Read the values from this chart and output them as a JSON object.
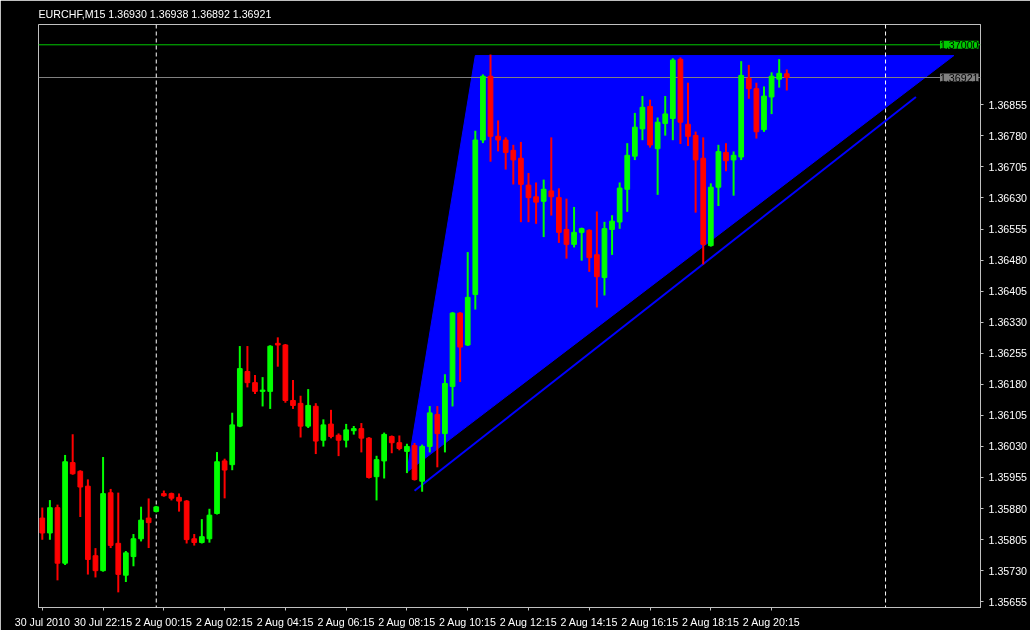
{
  "chart_data": {
    "type": "candlestick",
    "title": "EURCHF,M15  1.36930 1.36938 1.36892 1.36921",
    "categories": [
      "30 Jul 2010",
      null,
      null,
      null,
      null,
      null,
      null,
      null,
      "30 Jul 22:15",
      null,
      null,
      null,
      null,
      null,
      null,
      null,
      "2 Aug 00:15",
      null,
      null,
      null,
      null,
      null,
      null,
      null,
      "2 Aug 02:15",
      null,
      null,
      null,
      null,
      null,
      null,
      null,
      "2 Aug 04:15",
      null,
      null,
      null,
      null,
      null,
      null,
      null,
      "2 Aug 06:15",
      null,
      null,
      null,
      null,
      null,
      null,
      null,
      "2 Aug 08:15",
      null,
      null,
      null,
      null,
      null,
      null,
      null,
      "2 Aug 10:15",
      null,
      null,
      null,
      null,
      null,
      null,
      null,
      "2 Aug 12:15",
      null,
      null,
      null,
      null,
      null,
      null,
      null,
      "2 Aug 14:15",
      null,
      null,
      null,
      null,
      null,
      null,
      null,
      "2 Aug 16:15",
      null,
      null,
      null,
      null,
      null,
      null,
      null,
      "2 Aug 18:15",
      null,
      null,
      null,
      null,
      null,
      null,
      null,
      "2 Aug 20:15",
      null,
      null,
      null,
      null,
      null,
      null,
      null,
      null,
      null,
      null,
      null,
      null,
      null,
      null,
      null,
      null,
      null,
      null,
      null,
      null,
      null,
      null,
      null,
      null,
      null,
      null,
      null
    ],
    "ohlc": [
      [
        1.35857,
        1.3588,
        1.35807,
        1.35821
      ],
      [
        1.35821,
        1.35898,
        1.35807,
        1.35882
      ],
      [
        1.35882,
        1.35887,
        1.35709,
        1.35748
      ],
      [
        1.35748,
        1.36007,
        1.35746,
        1.35993
      ],
      [
        1.35991,
        1.36057,
        1.35964,
        1.35964
      ],
      [
        1.3597,
        1.3597,
        1.35862,
        1.35932
      ],
      [
        1.35934,
        1.35948,
        1.35723,
        1.35757
      ],
      [
        1.35766,
        1.35782,
        1.35716,
        1.3573
      ],
      [
        1.3573,
        1.36002,
        1.3573,
        1.35916
      ],
      [
        1.35918,
        1.35925,
        1.35787,
        1.35791
      ],
      [
        1.35796,
        1.35916,
        1.3568,
        1.35721
      ],
      [
        1.35719,
        1.35775,
        1.35705,
        1.35773
      ],
      [
        1.35764,
        1.35816,
        1.35743,
        1.35807
      ],
      [
        1.35807,
        1.35882,
        1.35803,
        1.35852
      ],
      [
        1.35857,
        1.35902,
        1.35787,
        1.35846
      ],
      [
        1.35873,
        1.35884,
        1.35873,
        1.35884
      ],
      [
        1.35916,
        1.35921,
        1.35911,
        1.35911
      ],
      [
        1.35916,
        1.35916,
        1.35902,
        1.35905
      ],
      [
        1.35907,
        1.35914,
        1.35875,
        1.35898
      ],
      [
        1.35898,
        1.35898,
        1.35798,
        1.35805
      ],
      [
        1.35807,
        1.35816,
        1.35793,
        1.35798
      ],
      [
        1.35798,
        1.35852,
        1.35798,
        1.35812
      ],
      [
        1.35807,
        1.35877,
        1.358,
        1.35864
      ],
      [
        1.35868,
        1.36014,
        1.35868,
        1.35993
      ],
      [
        1.35995,
        1.35998,
        1.35907,
        1.35973
      ],
      [
        1.35986,
        1.36109,
        1.35975,
        1.36082
      ],
      [
        1.36079,
        1.3627,
        1.36079,
        1.36218
      ],
      [
        1.36211,
        1.3627,
        1.36175,
        1.36184
      ],
      [
        1.36184,
        1.362,
        1.36159,
        1.36163
      ],
      [
        1.36163,
        1.36195,
        1.36129,
        1.36166
      ],
      [
        1.36163,
        1.36272,
        1.36123,
        1.36272
      ],
      [
        1.36279,
        1.36291,
        1.36225,
        1.36275
      ],
      [
        1.36275,
        1.36275,
        1.36138,
        1.36141
      ],
      [
        1.36141,
        1.36188,
        1.36123,
        1.36129
      ],
      [
        1.36134,
        1.3615,
        1.36054,
        1.36079
      ],
      [
        1.36079,
        1.36166,
        1.36077,
        1.36129
      ],
      [
        1.36127,
        1.36132,
        1.36014,
        1.36043
      ],
      [
        1.36045,
        1.36093,
        1.36032,
        1.36082
      ],
      [
        1.36084,
        1.36116,
        1.36052,
        1.36054
      ],
      [
        1.36057,
        1.36059,
        1.36009,
        1.36045
      ],
      [
        1.36045,
        1.36082,
        1.3603,
        1.3607
      ],
      [
        1.36068,
        1.36077,
        1.36061,
        1.36073
      ],
      [
        1.36073,
        1.36084,
        1.36018,
        1.3605
      ],
      [
        1.3605,
        1.3605,
        1.35955,
        1.35955
      ],
      [
        1.35957,
        1.36005,
        1.35902,
        1.35998
      ],
      [
        1.35995,
        1.36061,
        1.35955,
        1.36059
      ],
      [
        1.36054,
        1.36054,
        1.36016,
        1.36039
      ],
      [
        1.36039,
        1.36054,
        1.36023,
        1.36025
      ],
      [
        1.36018,
        1.36034,
        1.35968,
        1.3603
      ],
      [
        1.36032,
        1.36036,
        1.3595,
        1.3595
      ],
      [
        1.35946,
        1.36032,
        1.35923,
        1.3603
      ],
      [
        1.3603,
        1.36125,
        1.36018,
        1.36111
      ],
      [
        1.36107,
        1.36125,
        1.35982,
        1.36061
      ],
      [
        1.36061,
        1.36202,
        1.36018,
        1.36182
      ],
      [
        1.36175,
        1.36352,
        1.36129,
        1.36352
      ],
      [
        1.36352,
        1.36352,
        1.36188,
        1.3627
      ],
      [
        1.36275,
        1.36497,
        1.36275,
        1.3639
      ],
      [
        1.36397,
        1.3679,
        1.36363,
        1.3677
      ],
      [
        1.3677,
        1.36926,
        1.36765,
        1.36924
      ],
      [
        1.36924,
        1.36974,
        1.3672,
        1.36779
      ],
      [
        1.36779,
        1.36815,
        1.36745,
        1.3677
      ],
      [
        1.3677,
        1.36774,
        1.36701,
        1.3674
      ],
      [
        1.36745,
        1.36756,
        1.36665,
        1.36722
      ],
      [
        1.36726,
        1.36763,
        1.36574,
        1.36663
      ],
      [
        1.36661,
        1.36688,
        1.36574,
        1.36631
      ],
      [
        1.36633,
        1.36665,
        1.3657,
        1.3662
      ],
      [
        1.36622,
        1.36672,
        1.36538,
        1.36651
      ],
      [
        1.36647,
        1.36774,
        1.3659,
        1.36633
      ],
      [
        1.36631,
        1.36651,
        1.36524,
        1.36547
      ],
      [
        1.36554,
        1.36626,
        1.36486,
        1.36518
      ],
      [
        1.36518,
        1.36606,
        1.36513,
        1.36547
      ],
      [
        1.36547,
        1.36556,
        1.36481,
        1.36556
      ],
      [
        1.36552,
        1.36552,
        1.36454,
        1.36486
      ],
      [
        1.36493,
        1.36595,
        1.36368,
        1.3644
      ],
      [
        1.36438,
        1.3657,
        1.36397,
        1.36556
      ],
      [
        1.36554,
        1.36586,
        1.36495,
        1.36574
      ],
      [
        1.36572,
        1.36665,
        1.36558,
        1.36654
      ],
      [
        1.36651,
        1.3676,
        1.36599,
        1.36733
      ],
      [
        1.36731,
        1.36833,
        1.36724,
        1.36801
      ],
      [
        1.36797,
        1.36874,
        1.36772,
        1.36849
      ],
      [
        1.36851,
        1.36865,
        1.36754,
        1.36758
      ],
      [
        1.36749,
        1.36822,
        1.3664,
        1.36813
      ],
      [
        1.3681,
        1.36874,
        1.36783,
        1.36833
      ],
      [
        1.36822,
        1.36965,
        1.36772,
        1.36963
      ],
      [
        1.36965,
        1.36967,
        1.36763,
        1.36813
      ],
      [
        1.36808,
        1.36906,
        1.36758,
        1.36779
      ],
      [
        1.36781,
        1.36788,
        1.36597,
        1.36722
      ],
      [
        1.36726,
        1.36774,
        1.36472,
        1.36518
      ],
      [
        1.36515,
        1.36663,
        1.36515,
        1.36656
      ],
      [
        1.36656,
        1.36756,
        1.36613,
        1.36742
      ],
      [
        1.3674,
        1.3676,
        1.36697,
        1.3672
      ],
      [
        1.36722,
        1.3674,
        1.36638,
        1.36733
      ],
      [
        1.36729,
        1.36958,
        1.36724,
        1.36926
      ],
      [
        1.36919,
        1.36949,
        1.36872,
        1.36894
      ],
      [
        1.36894,
        1.36906,
        1.36776,
        1.3679
      ],
      [
        1.36795,
        1.36897,
        1.36792,
        1.36876
      ],
      [
        1.36874,
        1.36931,
        1.36835,
        1.36924
      ],
      [
        1.36917,
        1.36963,
        1.36899,
        1.36931
      ],
      [
        1.3693,
        1.36938,
        1.36892,
        1.36921
      ],
      null,
      null,
      null,
      null,
      null,
      null,
      null,
      null,
      null,
      null,
      null,
      null,
      null,
      null,
      null,
      null,
      null,
      null,
      null,
      null,
      null,
      null,
      null,
      null,
      null
    ],
    "colors": [
      "#ff0000",
      "#00ff00",
      "#ff0000",
      "#00ff00",
      "#ff0000",
      "#ff0000",
      "#ff0000",
      "#ff0000",
      "#00ff00",
      "#ff0000",
      "#ff0000",
      "#00ff00",
      "#00ff00",
      "#00ff00",
      "#ff0000",
      "#00ff00",
      "#ff0000",
      "#ff0000",
      "#ff0000",
      "#ff0000",
      "#ff0000",
      "#00ff00",
      "#00ff00",
      "#00ff00",
      "#ff0000",
      "#00ff00",
      "#00ff00",
      "#ff0000",
      "#ff0000",
      "#00ff00",
      "#00ff00",
      "#ff0000",
      "#ff0000",
      "#ff0000",
      "#ff0000",
      "#00ff00",
      "#ff0000",
      "#00ff00",
      "#ff0000",
      "#ff0000",
      "#00ff00",
      "#00ff00",
      "#ff0000",
      "#ff0000",
      "#00ff00",
      "#00ff00",
      "#ff0000",
      "#ff0000",
      "#00ff00",
      "#ff0000",
      "#00ff00",
      "#00ff00",
      "#ff0000",
      "#00ff00",
      "#00ff00",
      "#ff0000",
      "#00ff00",
      "#00ff00",
      "#00ff00",
      "#ff0000",
      "#ff0000",
      "#ff0000",
      "#ff0000",
      "#ff0000",
      "#ff0000",
      "#ff0000",
      "#00ff00",
      "#ff0000",
      "#ff0000",
      "#ff0000",
      "#00ff00",
      "#00ff00",
      "#ff0000",
      "#ff0000",
      "#00ff00",
      "#00ff00",
      "#00ff00",
      "#00ff00",
      "#00ff00",
      "#00ff00",
      "#ff0000",
      "#00ff00",
      "#00ff00",
      "#00ff00",
      "#ff0000",
      "#ff0000",
      "#ff0000",
      "#ff0000",
      "#00ff00",
      "#00ff00",
      "#ff0000",
      "#00ff00",
      "#00ff00",
      "#ff0000",
      "#ff0000",
      "#00ff00",
      "#00ff00",
      "#00ff00",
      "#ff0000",
      null,
      null,
      null,
      null,
      null,
      null,
      null,
      null,
      null,
      null,
      null,
      null,
      null,
      null,
      null,
      null,
      null,
      null,
      null,
      null,
      null,
      null,
      null,
      null,
      null
    ],
    "series": [
      {
        "type": "area",
        "color": "#0000ff",
        "values": [
          null,
          null,
          null,
          null,
          null,
          null,
          null,
          null,
          null,
          null,
          null,
          null,
          null,
          null,
          null,
          null,
          null,
          null,
          null,
          null,
          null,
          null,
          null,
          null,
          null,
          null,
          null,
          null,
          null,
          null,
          null,
          null,
          null,
          null,
          null,
          null,
          null,
          null,
          null,
          null,
          null,
          null,
          null,
          null,
          null,
          null,
          null,
          null,
          1.35968,
          null,
          null,
          null,
          null,
          null,
          null,
          null,
          null,
          1.36974,
          null,
          null,
          null,
          null,
          null,
          null,
          null,
          null,
          null,
          null,
          null,
          null,
          null,
          null,
          null,
          null,
          null,
          null,
          null,
          null,
          null,
          null,
          null,
          null,
          null,
          null,
          null,
          null,
          null,
          null,
          null,
          null,
          null,
          null,
          null,
          null,
          null,
          null,
          null,
          null,
          null,
          null,
          null,
          null,
          null,
          null,
          null,
          null,
          null,
          null,
          null,
          null,
          null,
          null,
          null,
          null,
          null,
          null,
          null,
          null,
          null,
          null,
          1.36974,
          null,
          null,
          null
        ]
      },
      {
        "type": "line",
        "color": "#0000ff",
        "values": [
          null,
          null,
          null,
          null,
          null,
          null,
          null,
          null,
          null,
          null,
          null,
          null,
          null,
          null,
          null,
          null,
          null,
          null,
          null,
          null,
          null,
          null,
          null,
          null,
          null,
          null,
          null,
          null,
          null,
          null,
          null,
          null,
          null,
          null,
          null,
          null,
          null,
          null,
          null,
          null,
          null,
          null,
          null,
          null,
          null,
          null,
          null,
          null,
          null,
          1.35923,
          null,
          null,
          null,
          null,
          null,
          null,
          null,
          null,
          null,
          null,
          null,
          null,
          null,
          null,
          null,
          null,
          null,
          null,
          null,
          null,
          null,
          null,
          null,
          null,
          null,
          null,
          null,
          null,
          null,
          null,
          null,
          null,
          null,
          null,
          null,
          null,
          null,
          null,
          null,
          null,
          null,
          null,
          null,
          null,
          null,
          null,
          null,
          null,
          null,
          null,
          null,
          null,
          null,
          null,
          null,
          null,
          null,
          null,
          null,
          null,
          null,
          null,
          null,
          null,
          null,
          1.36874,
          null,
          null,
          null,
          null,
          null,
          null,
          null,
          null
        ]
      }
    ],
    "ref_lines": [
      {
        "axis": "y",
        "value": 1.37,
        "label": "1.37000",
        "color": "#00c800"
      },
      {
        "axis": "y",
        "value": 1.36921,
        "label": "1.36921",
        "color": "#808080"
      }
    ],
    "ylim": [
      1.35641,
      1.37049
    ],
    "yticks": [
      {
        "value": 1.35655,
        "label": "1.35655"
      },
      {
        "value": 1.3573,
        "label": "1.35730"
      },
      {
        "value": 1.35805,
        "label": "1.35805"
      },
      {
        "value": 1.3588,
        "label": "1.35880"
      },
      {
        "value": 1.35955,
        "label": "1.35955"
      },
      {
        "value": 1.3603,
        "label": "1.36030"
      },
      {
        "value": 1.36105,
        "label": "1.36105"
      },
      {
        "value": 1.3618,
        "label": "1.36180"
      },
      {
        "value": 1.36255,
        "label": "1.36255"
      },
      {
        "value": 1.3633,
        "label": "1.36330"
      },
      {
        "value": 1.36405,
        "label": "1.36405"
      },
      {
        "value": 1.3648,
        "label": "1.36480"
      },
      {
        "value": 1.36555,
        "label": "1.36555"
      },
      {
        "value": 1.3663,
        "label": "1.36630"
      },
      {
        "value": 1.36705,
        "label": "1.36705"
      },
      {
        "value": 1.3678,
        "label": "1.36780"
      },
      {
        "value": 1.36855,
        "label": "1.36855"
      }
    ]
  }
}
